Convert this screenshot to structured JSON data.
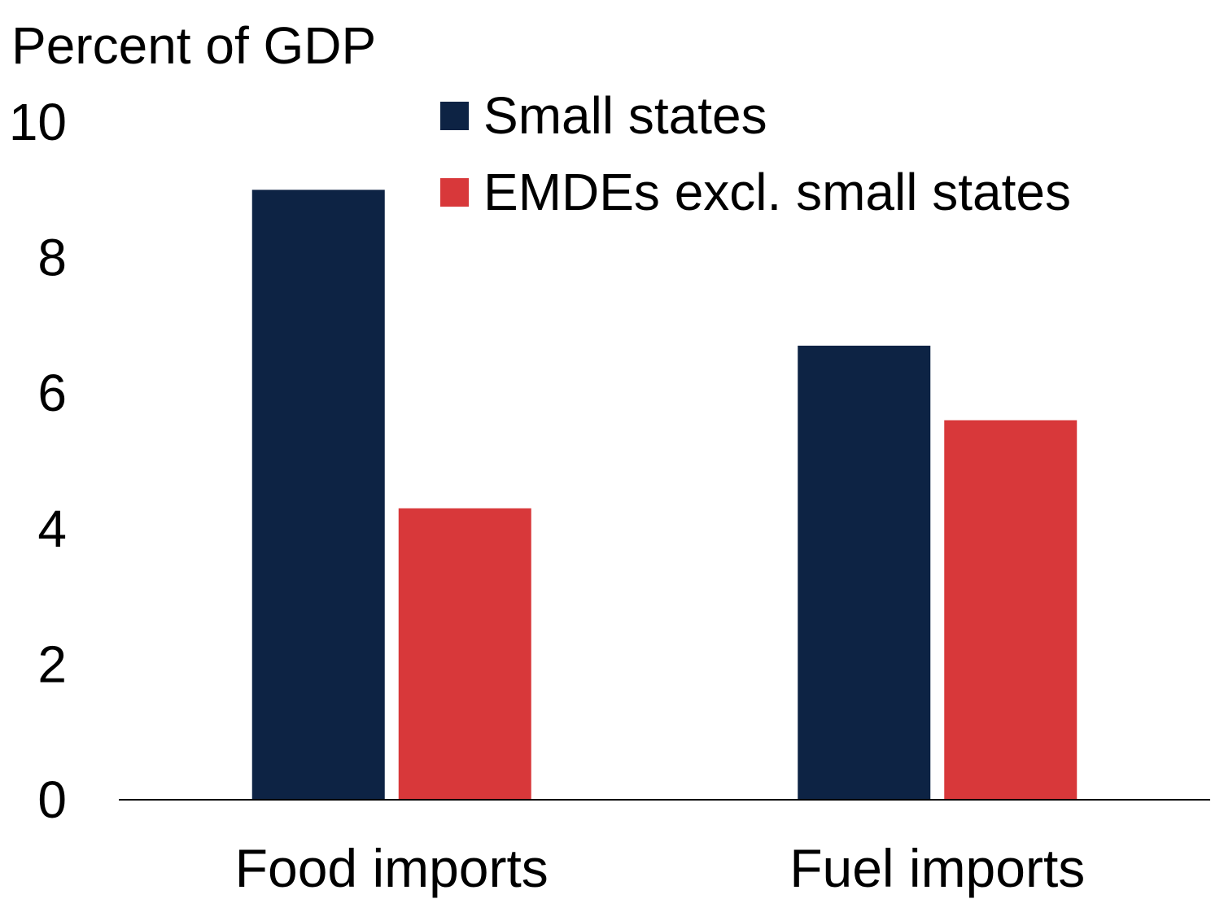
{
  "chart_data": {
    "type": "bar",
    "title": "",
    "ylabel": "Percent of GDP",
    "xlabel": "",
    "categories": [
      "Food imports",
      "Fuel imports"
    ],
    "series": [
      {
        "name": "Small states",
        "values": [
          9.0,
          6.7
        ],
        "color": "#0d2344"
      },
      {
        "name": "EMDEs excl. small states",
        "values": [
          4.3,
          5.6
        ],
        "color": "#d8383a"
      }
    ],
    "ylim": [
      0,
      10
    ],
    "yticks": [
      "0",
      "2",
      "4",
      "6",
      "8",
      "10"
    ],
    "grid": false,
    "legend_position": "top-right"
  }
}
